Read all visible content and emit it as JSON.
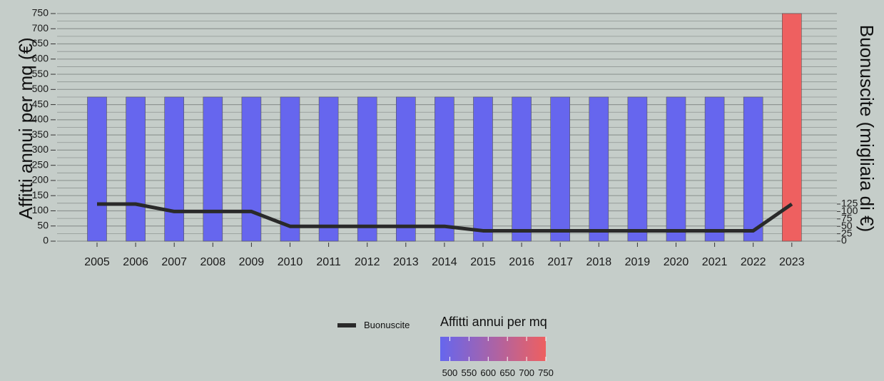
{
  "chart_data": {
    "type": "bar",
    "categories": [
      "2005",
      "2006",
      "2007",
      "2008",
      "2009",
      "2010",
      "2011",
      "2012",
      "2013",
      "2014",
      "2015",
      "2016",
      "2017",
      "2018",
      "2019",
      "2020",
      "2021",
      "2022",
      "2023"
    ],
    "bar_series": {
      "name": "Affitti annui per mq",
      "values": [
        475,
        475,
        475,
        475,
        475,
        475,
        475,
        475,
        475,
        475,
        475,
        475,
        475,
        475,
        475,
        475,
        475,
        475,
        750
      ]
    },
    "line_series": {
      "name": "Buonuscite",
      "values": [
        125,
        125,
        100,
        100,
        100,
        50,
        50,
        50,
        50,
        50,
        35,
        35,
        35,
        35,
        35,
        35,
        35,
        35,
        125
      ]
    },
    "ylabel": "Affitti annui per mq (€)",
    "y2label": "Buonuscite (migliaia di €)",
    "ylim": [
      0,
      750
    ],
    "yticks": [
      0,
      50,
      100,
      150,
      200,
      250,
      300,
      350,
      400,
      450,
      500,
      550,
      600,
      650,
      700,
      750
    ],
    "y2ticks": [
      0,
      25,
      50,
      75,
      100,
      125
    ],
    "grid": true,
    "legend": {
      "line_label": "Buonuscite",
      "color_title": "Affitti annui per mq",
      "color_ticks": [
        500,
        550,
        600,
        650,
        700,
        750
      ],
      "color_range": [
        475,
        750
      ]
    },
    "colors": {
      "low": "#6666ee",
      "high": "#ee6060",
      "line": "#2a2a2a",
      "grid": "#8f9693",
      "background": "#c5cdc9"
    }
  }
}
